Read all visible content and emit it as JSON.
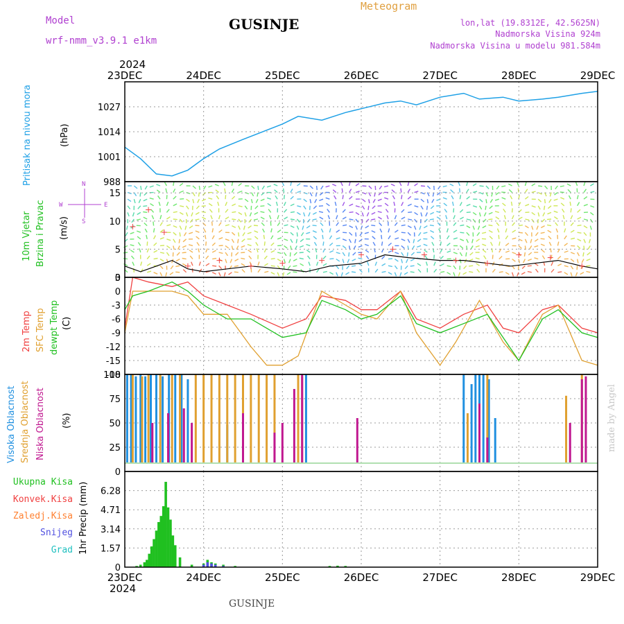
{
  "header": {
    "model_label": "Model",
    "model_name": "wrf-nmm_v3.9.1 e1km",
    "station": "GUSINJE",
    "title": "Meteogram",
    "lonlat": "lon,lat (19.8312E, 42.5625N)",
    "elevation": "Nadmorska Visina 924m",
    "elevation_model": "Nadmorska Visina u modelu 981.584m",
    "year": "2024",
    "credit": "made by Angel",
    "footer_station": "GUSINJE"
  },
  "colors": {
    "pressure": "#1ea0e6",
    "temp": "#f04040",
    "sfc": "#e0a030",
    "dewpt": "#20c020",
    "cloud_high": "#2090e0",
    "cloud_mid": "#e0a030",
    "cloud_low": "#c01890",
    "precip_total": "#20c020",
    "precip_conv": "#f04040",
    "precip_frz": "#ff8030",
    "precip_snow": "#5050e0",
    "precip_hail": "#20c0c0",
    "wind_speed": "#000000",
    "gust": "#f04040",
    "title": "#e0a040",
    "model": "#b040d0"
  },
  "chart_data": [
    {
      "type": "line",
      "panel": "pressure",
      "ylabel": [
        "Pritisak na nivou mora",
        "(hPa)"
      ],
      "ylim": [
        988,
        1040
      ],
      "yticks": [
        "1027",
        "1014",
        "1001",
        "988"
      ],
      "x_days": [
        "23DEC",
        "24DEC",
        "25DEC",
        "26DEC",
        "27DEC",
        "28DEC",
        "29DEC"
      ],
      "grid": true,
      "series": [
        {
          "x": [
            0,
            0.2,
            0.4,
            0.6,
            0.8,
            1.0,
            1.2,
            1.5,
            2.0,
            2.2,
            2.5,
            2.8,
            3.0,
            3.3,
            3.5,
            3.7,
            4.0,
            4.3,
            4.5,
            4.8,
            5.0,
            5.3,
            5.5,
            5.8,
            6.0
          ],
          "values": [
            1006,
            1000,
            992,
            991,
            994,
            1000,
            1005,
            1010,
            1018,
            1022,
            1020,
            1024,
            1026,
            1029,
            1030,
            1028,
            1032,
            1034,
            1031,
            1032,
            1030,
            1031,
            1032,
            1034,
            1035
          ]
        }
      ]
    },
    {
      "type": "line",
      "panel": "wind",
      "ylabel": [
        "10m Vjetar",
        "Brzina i Pravac",
        "(m/s)"
      ],
      "compass": [
        "N",
        "W",
        "E",
        "S"
      ],
      "ylim": [
        0,
        17
      ],
      "yticks": [
        "15",
        "10",
        "5",
        "0"
      ],
      "grid": true,
      "series": [
        {
          "name": "speed",
          "x": [
            0,
            0.2,
            0.4,
            0.6,
            0.8,
            1.0,
            1.3,
            1.6,
            2.0,
            2.3,
            2.6,
            3.0,
            3.3,
            3.6,
            4.0,
            4.3,
            4.6,
            4.9,
            5.2,
            5.5,
            5.8,
            6.0
          ],
          "values": [
            2,
            1,
            2,
            3,
            1.5,
            1,
            1.5,
            2,
            1.5,
            1,
            2,
            2.5,
            4,
            3.5,
            3,
            3,
            2.5,
            2,
            2.5,
            3,
            2,
            1.5
          ]
        },
        {
          "name": "gust",
          "x": [
            0.1,
            0.3,
            0.5,
            0.8,
            1.2,
            1.6,
            2.0,
            2.5,
            3.0,
            3.4,
            3.8,
            4.2,
            4.6,
            5.0,
            5.4,
            5.8
          ],
          "values": [
            9,
            12,
            8,
            2,
            3,
            2,
            2.5,
            3,
            4,
            5,
            4,
            3,
            2.5,
            4,
            3.5,
            2
          ]
        }
      ]
    },
    {
      "type": "line",
      "panel": "temperature",
      "ylabel": [
        "2m Temp",
        "SFC Temp",
        "dewpt Temp",
        "(C)"
      ],
      "ylim": [
        -18,
        3
      ],
      "yticks": [
        "3",
        "0",
        "-3",
        "-6",
        "-9",
        "-12",
        "-15",
        "-18"
      ],
      "grid": true,
      "series": [
        {
          "name": "2m",
          "x": [
            0,
            0.1,
            0.3,
            0.6,
            0.8,
            1.0,
            1.3,
            1.6,
            2.0,
            2.3,
            2.5,
            2.8,
            3.0,
            3.2,
            3.5,
            3.7,
            4.0,
            4.3,
            4.6,
            4.8,
            5.0,
            5.3,
            5.5,
            5.8,
            6.0
          ],
          "values": [
            -8,
            3,
            2,
            1,
            2,
            -1,
            -3,
            -5,
            -8,
            -6,
            -1,
            -2,
            -4,
            -4,
            0,
            -6,
            -8,
            -5,
            -3,
            -8,
            -9,
            -4,
            -3,
            -8,
            -9
          ]
        },
        {
          "name": "sfc",
          "x": [
            0,
            0.1,
            0.3,
            0.6,
            0.8,
            1.0,
            1.3,
            1.6,
            1.8,
            2.0,
            2.2,
            2.5,
            2.8,
            3.0,
            3.2,
            3.5,
            3.7,
            4.0,
            4.2,
            4.5,
            4.8,
            5.0,
            5.3,
            5.5,
            5.8,
            6.0
          ],
          "values": [
            -9,
            0,
            0,
            0,
            -1,
            -5,
            -5,
            -12,
            -16,
            -16,
            -14,
            0,
            -3,
            -5,
            -6,
            0,
            -9,
            -16,
            -11,
            -2,
            -11,
            -15,
            -5,
            -3,
            -15,
            -16
          ]
        },
        {
          "name": "dewpt",
          "x": [
            0,
            0.1,
            0.3,
            0.6,
            0.8,
            1.0,
            1.3,
            1.6,
            2.0,
            2.3,
            2.5,
            2.8,
            3.0,
            3.2,
            3.5,
            3.7,
            4.0,
            4.3,
            4.6,
            4.8,
            5.0,
            5.3,
            5.5,
            5.8,
            6.0
          ],
          "values": [
            -4,
            -1,
            0,
            2,
            0,
            -3,
            -6,
            -6,
            -10,
            -9,
            -2,
            -4,
            -6,
            -5,
            -1,
            -7,
            -9,
            -7,
            -5,
            -10,
            -15,
            -6,
            -4,
            -9,
            -10
          ]
        }
      ]
    },
    {
      "type": "bar",
      "panel": "clouds",
      "ylabel": [
        "Visoka Oblacnost",
        "Srednja Oblacnost",
        "Niska Oblacnost",
        "(%)"
      ],
      "ylim": [
        0,
        100
      ],
      "yticks": [
        "100",
        "75",
        "50",
        "25",
        "0"
      ],
      "grid": true,
      "series": [
        {
          "name": "high",
          "x": [
            0.03,
            0.08,
            0.14,
            0.2,
            0.26,
            0.33,
            0.4,
            0.48,
            0.56,
            0.64,
            0.72,
            0.8,
            1.3,
            2.3,
            4.3,
            4.4,
            4.45,
            4.5,
            4.55,
            4.62,
            4.7
          ],
          "values": [
            100,
            100,
            98,
            100,
            98,
            100,
            100,
            98,
            100,
            100,
            100,
            95,
            48,
            100,
            100,
            90,
            100,
            100,
            100,
            95,
            55
          ]
        },
        {
          "name": "mid",
          "x": [
            0.1,
            0.22,
            0.3,
            0.45,
            0.6,
            0.7,
            0.9,
            1.0,
            1.1,
            1.2,
            1.3,
            1.4,
            1.5,
            1.6,
            1.7,
            1.8,
            1.9,
            2.2,
            2.25,
            4.35,
            4.6,
            5.6,
            5.8
          ],
          "values": [
            100,
            98,
            100,
            100,
            100,
            100,
            100,
            100,
            100,
            100,
            100,
            100,
            100,
            100,
            100,
            100,
            100,
            100,
            98,
            60,
            100,
            78,
            100
          ]
        },
        {
          "name": "low",
          "x": [
            0.35,
            0.55,
            0.75,
            0.85,
            1.5,
            1.9,
            2.0,
            2.15,
            2.25,
            2.95,
            4.5,
            4.6,
            5.65,
            5.8,
            5.85
          ],
          "values": [
            50,
            60,
            65,
            50,
            60,
            40,
            50,
            85,
            100,
            55,
            70,
            35,
            50,
            95,
            98
          ]
        }
      ]
    },
    {
      "type": "bar",
      "panel": "precip",
      "ylabel": "1hr Precip (mm)",
      "ylim": [
        0,
        7.85
      ],
      "yticks": [
        "6.28",
        "4.71",
        "3.14",
        "1.57",
        "0"
      ],
      "x_days": [
        "23DEC",
        "24DEC",
        "25DEC",
        "26DEC",
        "27DEC",
        "28DEC",
        "29DEC"
      ],
      "grid": true,
      "legend": [
        "Ukupna Kisa",
        "Konvek.Kisa",
        "Zaledj.Kisa",
        "Snijeg",
        "Grad"
      ],
      "series": [
        {
          "name": "total",
          "x": [
            0.15,
            0.2,
            0.25,
            0.28,
            0.31,
            0.34,
            0.37,
            0.4,
            0.43,
            0.46,
            0.49,
            0.52,
            0.55,
            0.58,
            0.61,
            0.64,
            0.7,
            0.85,
            1.0,
            1.05,
            1.1,
            1.15,
            1.25,
            1.4,
            2.6,
            2.7,
            2.8
          ],
          "values": [
            0.1,
            0.2,
            0.4,
            0.6,
            1.1,
            1.7,
            2.3,
            3.0,
            3.7,
            4.2,
            5.0,
            7.0,
            4.9,
            3.9,
            2.6,
            1.8,
            0.8,
            0.2,
            0.3,
            0.6,
            0.4,
            0.3,
            0.2,
            0.1,
            0.1,
            0.12,
            0.1
          ]
        },
        {
          "name": "snow",
          "x": [
            1.0,
            1.05,
            1.1,
            1.15,
            1.25
          ],
          "values": [
            0.2,
            0.4,
            0.3,
            0.2,
            0.1
          ]
        }
      ]
    }
  ]
}
